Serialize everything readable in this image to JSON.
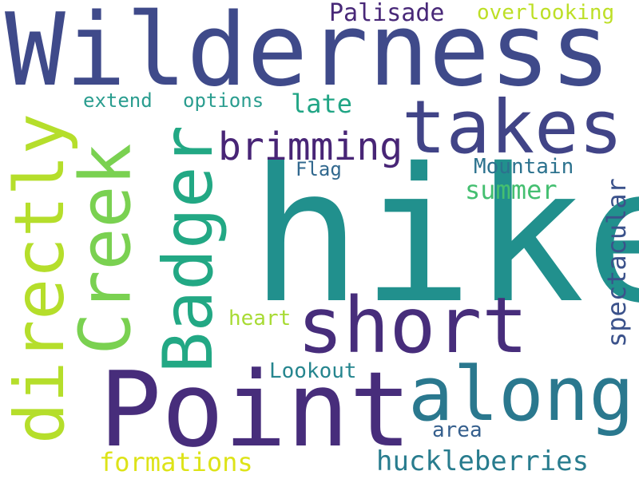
{
  "word_cloud": {
    "background": "#ffffff",
    "words": [
      {
        "text": "Wilderness",
        "color": "#3f4a8a"
      },
      {
        "text": "hike",
        "color": "#21908d"
      },
      {
        "text": "Point",
        "color": "#472d7b"
      },
      {
        "text": "takes",
        "color": "#414487"
      },
      {
        "text": "short",
        "color": "#472d7b"
      },
      {
        "text": "along",
        "color": "#2a788e"
      },
      {
        "text": "Badger",
        "color": "#22a884"
      },
      {
        "text": "Creek",
        "color": "#7ad151"
      },
      {
        "text": "directly",
        "color": "#b5de2b"
      },
      {
        "text": "brimming",
        "color": "#482576"
      },
      {
        "text": "Palisade",
        "color": "#482878"
      },
      {
        "text": "overlooking",
        "color": "#bddf26"
      },
      {
        "text": "extend",
        "color": "#2a9d8f"
      },
      {
        "text": "options",
        "color": "#2a9d8f"
      },
      {
        "text": "late",
        "color": "#21a585"
      },
      {
        "text": "Flag",
        "color": "#31688e"
      },
      {
        "text": "Mountain",
        "color": "#2c728e"
      },
      {
        "text": "summer",
        "color": "#44bf70"
      },
      {
        "text": "spectacular",
        "color": "#3b528b"
      },
      {
        "text": "heart",
        "color": "#a8db34"
      },
      {
        "text": "Lookout",
        "color": "#25858e"
      },
      {
        "text": "area",
        "color": "#355f8d"
      },
      {
        "text": "formations",
        "color": "#dde318"
      },
      {
        "text": "huckleberries",
        "color": "#287c8e"
      }
    ]
  }
}
